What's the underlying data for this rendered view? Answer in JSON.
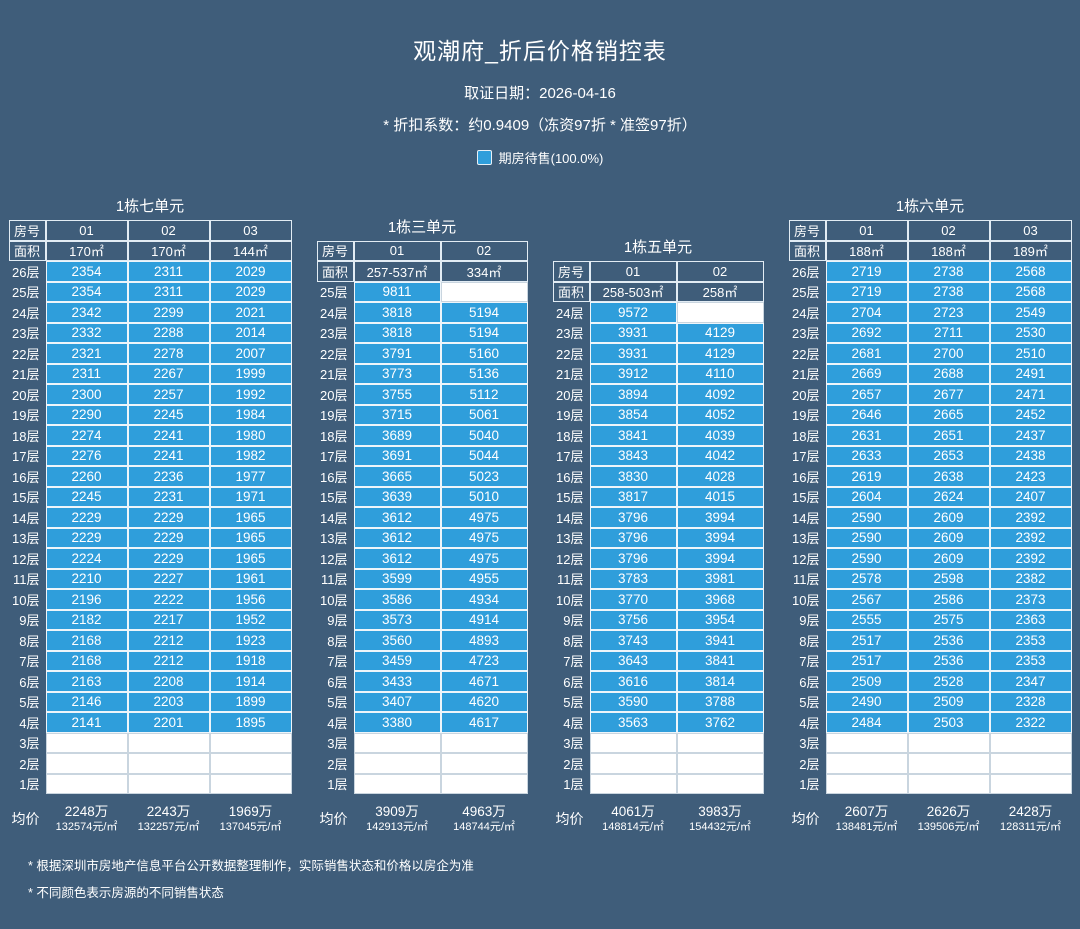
{
  "header": {
    "title": "观潮府_折后价格销控表",
    "date_line": "取证日期：2026-04-16",
    "discount_line": "* 折扣系数：约0.9409（冻资97折 * 准签97折）",
    "legend": {
      "label": "期房待售(100.0%)"
    }
  },
  "labels": {
    "room": "房号",
    "area": "面积",
    "avg": "均价",
    "floor_suffix": "层"
  },
  "colors": {
    "background": "#3f5d7a",
    "cell_available": "#2f9edb",
    "cell_empty": "#ffffff"
  },
  "chart_data": {
    "type": "table",
    "title": "观潮府_折后价格销控表",
    "max_floor": 26,
    "legend": [
      {
        "label": "期房待售(100.0%)",
        "color": "#2f9edb"
      }
    ],
    "sections": [
      {
        "title": "1栋七单元",
        "units": [
          "01",
          "02",
          "03"
        ],
        "areas": [
          "170㎡",
          "170㎡",
          "144㎡"
        ],
        "top_floor": 26,
        "rows": [
          [
            2354,
            2311,
            2029
          ],
          [
            2354,
            2311,
            2029
          ],
          [
            2342,
            2299,
            2021
          ],
          [
            2332,
            2288,
            2014
          ],
          [
            2321,
            2278,
            2007
          ],
          [
            2311,
            2267,
            1999
          ],
          [
            2300,
            2257,
            1992
          ],
          [
            2290,
            2245,
            1984
          ],
          [
            2274,
            2241,
            1980
          ],
          [
            2276,
            2241,
            1982
          ],
          [
            2260,
            2236,
            1977
          ],
          [
            2245,
            2231,
            1971
          ],
          [
            2229,
            2229,
            1965
          ],
          [
            2229,
            2229,
            1965
          ],
          [
            2224,
            2229,
            1965
          ],
          [
            2210,
            2227,
            1961
          ],
          [
            2196,
            2222,
            1956
          ],
          [
            2182,
            2217,
            1952
          ],
          [
            2168,
            2212,
            1923
          ],
          [
            2168,
            2212,
            1918
          ],
          [
            2163,
            2208,
            1914
          ],
          [
            2146,
            2203,
            1899
          ],
          [
            2141,
            2201,
            1895
          ],
          [
            null,
            null,
            null
          ],
          [
            null,
            null,
            null
          ],
          [
            null,
            null,
            null
          ]
        ],
        "avg": [
          {
            "total": "2248万",
            "unit": "132574元/㎡"
          },
          {
            "total": "2243万",
            "unit": "132257元/㎡"
          },
          {
            "total": "1969万",
            "unit": "137045元/㎡"
          }
        ]
      },
      {
        "title": "1栋三单元",
        "units": [
          "01",
          "02"
        ],
        "areas": [
          "257-537㎡",
          "334㎡"
        ],
        "top_floor": 25,
        "rows": [
          [
            9811,
            null
          ],
          [
            3818,
            5194
          ],
          [
            3818,
            5194
          ],
          [
            3791,
            5160
          ],
          [
            3773,
            5136
          ],
          [
            3755,
            5112
          ],
          [
            3715,
            5061
          ],
          [
            3689,
            5040
          ],
          [
            3691,
            5044
          ],
          [
            3665,
            5023
          ],
          [
            3639,
            5010
          ],
          [
            3612,
            4975
          ],
          [
            3612,
            4975
          ],
          [
            3612,
            4975
          ],
          [
            3599,
            4955
          ],
          [
            3586,
            4934
          ],
          [
            3573,
            4914
          ],
          [
            3560,
            4893
          ],
          [
            3459,
            4723
          ],
          [
            3433,
            4671
          ],
          [
            3407,
            4620
          ],
          [
            3380,
            4617
          ],
          [
            null,
            null
          ],
          [
            null,
            null
          ],
          [
            null,
            null
          ]
        ],
        "avg": [
          {
            "total": "3909万",
            "unit": "142913元/㎡"
          },
          {
            "total": "4963万",
            "unit": "148744元/㎡"
          }
        ]
      },
      {
        "title": "1栋五单元",
        "units": [
          "01",
          "02"
        ],
        "areas": [
          "258-503㎡",
          "258㎡"
        ],
        "top_floor": 24,
        "rows": [
          [
            9572,
            null
          ],
          [
            3931,
            4129
          ],
          [
            3931,
            4129
          ],
          [
            3912,
            4110
          ],
          [
            3894,
            4092
          ],
          [
            3854,
            4052
          ],
          [
            3841,
            4039
          ],
          [
            3843,
            4042
          ],
          [
            3830,
            4028
          ],
          [
            3817,
            4015
          ],
          [
            3796,
            3994
          ],
          [
            3796,
            3994
          ],
          [
            3796,
            3994
          ],
          [
            3783,
            3981
          ],
          [
            3770,
            3968
          ],
          [
            3756,
            3954
          ],
          [
            3743,
            3941
          ],
          [
            3643,
            3841
          ],
          [
            3616,
            3814
          ],
          [
            3590,
            3788
          ],
          [
            3563,
            3762
          ],
          [
            null,
            null
          ],
          [
            null,
            null
          ],
          [
            null,
            null
          ]
        ],
        "avg": [
          {
            "total": "4061万",
            "unit": "148814元/㎡"
          },
          {
            "total": "3983万",
            "unit": "154432元/㎡"
          }
        ]
      },
      {
        "title": "1栋六单元",
        "units": [
          "01",
          "02",
          "03"
        ],
        "areas": [
          "188㎡",
          "188㎡",
          "189㎡"
        ],
        "top_floor": 26,
        "rows": [
          [
            2719,
            2738,
            2568
          ],
          [
            2719,
            2738,
            2568
          ],
          [
            2704,
            2723,
            2549
          ],
          [
            2692,
            2711,
            2530
          ],
          [
            2681,
            2700,
            2510
          ],
          [
            2669,
            2688,
            2491
          ],
          [
            2657,
            2677,
            2471
          ],
          [
            2646,
            2665,
            2452
          ],
          [
            2631,
            2651,
            2437
          ],
          [
            2633,
            2653,
            2438
          ],
          [
            2619,
            2638,
            2423
          ],
          [
            2604,
            2624,
            2407
          ],
          [
            2590,
            2609,
            2392
          ],
          [
            2590,
            2609,
            2392
          ],
          [
            2590,
            2609,
            2392
          ],
          [
            2578,
            2598,
            2382
          ],
          [
            2567,
            2586,
            2373
          ],
          [
            2555,
            2575,
            2363
          ],
          [
            2517,
            2536,
            2353
          ],
          [
            2517,
            2536,
            2353
          ],
          [
            2509,
            2528,
            2347
          ],
          [
            2490,
            2509,
            2328
          ],
          [
            2484,
            2503,
            2322
          ],
          [
            null,
            null,
            null
          ],
          [
            null,
            null,
            null
          ],
          [
            null,
            null,
            null
          ]
        ],
        "avg": [
          {
            "total": "2607万",
            "unit": "138481元/㎡"
          },
          {
            "total": "2626万",
            "unit": "139506元/㎡"
          },
          {
            "total": "2428万",
            "unit": "128311元/㎡"
          }
        ]
      }
    ]
  },
  "footnotes": [
    "* 根据深圳市房地产信息平台公开数据整理制作，实际销售状态和价格以房企为准",
    "* 不同颜色表示房源的不同销售状态"
  ]
}
